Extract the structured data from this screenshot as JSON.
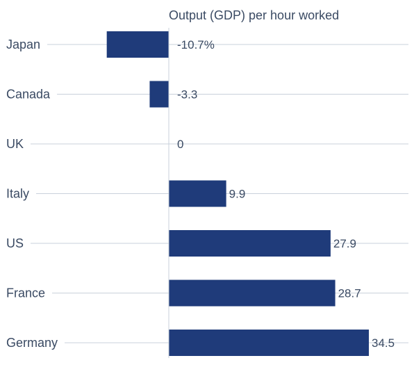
{
  "chart_data": {
    "type": "bar",
    "orientation": "horizontal",
    "title": "Output (GDP) per hour worked",
    "categories": [
      "Japan",
      "Canada",
      "UK",
      "Italy",
      "US",
      "France",
      "Germany"
    ],
    "values": [
      -10.7,
      -3.3,
      0,
      9.9,
      27.9,
      28.7,
      34.5
    ],
    "value_labels": [
      "-10.7%",
      "-3.3",
      "0",
      "9.9",
      "27.9",
      "28.7",
      "34.5"
    ],
    "xlim": [
      -11,
      34.5
    ],
    "grid": true,
    "legend": "none",
    "colors": {
      "bar": "#1f3b7a",
      "gridline": "#c9d0db",
      "zero_line": "#c9d0db",
      "text": "#3a4a63"
    }
  }
}
